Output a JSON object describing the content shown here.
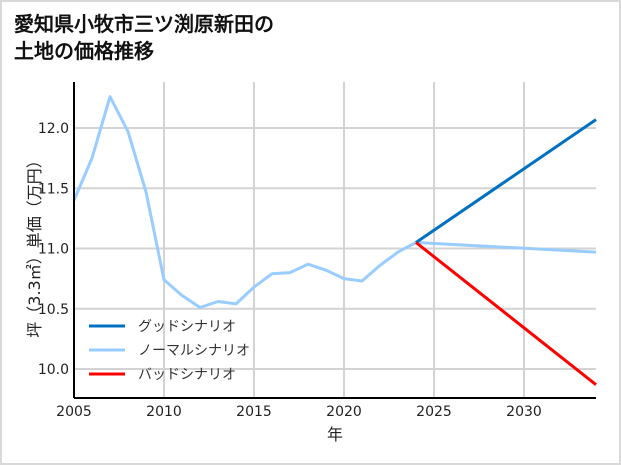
{
  "title_line1": "愛知県小牧市三ツ渕原新田の",
  "title_line2": "土地の価格推移",
  "chart_data": {
    "type": "line",
    "title": "愛知県小牧市三ツ渕原新田の土地の価格推移",
    "xlabel": "年",
    "ylabel": "坪（3.3㎡）単価（万円）",
    "xlim": [
      2005,
      2034
    ],
    "ylim": [
      9.77,
      12.4
    ],
    "xticks": [
      2005,
      2010,
      2015,
      2020,
      2025,
      2030
    ],
    "yticks": [
      10.0,
      10.5,
      11.0,
      11.5,
      12.0
    ],
    "ytick_labels": [
      "10.0",
      "10.5",
      "11.0",
      "11.5",
      "12.0"
    ],
    "grid": true,
    "legend_position": "lower left",
    "series": [
      {
        "name": "グッドシナリオ",
        "color": "#0070c0",
        "x": [
          2024,
          2034
        ],
        "values": [
          11.05,
          12.07
        ]
      },
      {
        "name": "ノーマルシナリオ",
        "color": "#99ccff",
        "x": [
          2005,
          2006,
          2007,
          2008,
          2009,
          2010,
          2011,
          2012,
          2013,
          2014,
          2015,
          2016,
          2017,
          2018,
          2019,
          2020,
          2021,
          2022,
          2023,
          2024,
          2034
        ],
        "values": [
          11.4,
          11.75,
          12.26,
          11.97,
          11.47,
          10.74,
          10.61,
          10.51,
          10.56,
          10.54,
          10.68,
          10.79,
          10.8,
          10.87,
          10.82,
          10.75,
          10.73,
          10.86,
          10.97,
          11.05,
          10.97
        ]
      },
      {
        "name": "バッドシナリオ",
        "color": "#ff0000",
        "x": [
          2024,
          2034
        ],
        "values": [
          11.05,
          9.87
        ]
      }
    ]
  }
}
